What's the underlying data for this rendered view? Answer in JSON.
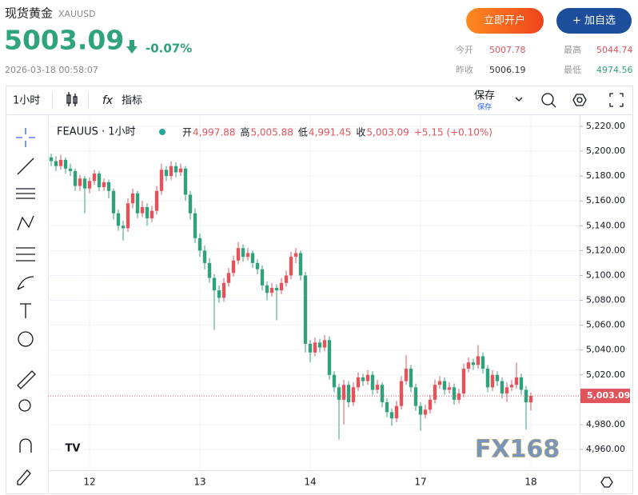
{
  "header": {
    "name": "现货黄金",
    "code": "XAUUSD",
    "price": "5003.09",
    "change": "-0.07%",
    "time": "2026-03-18 00:58:07",
    "buttons": [
      "立即开户",
      "+ 加自选"
    ],
    "stats": [
      {
        "label": "今开",
        "value": "5007.78"
      },
      {
        "label": "最高",
        "value": "5044.74"
      },
      {
        "label": "昨收",
        "value": "5006.19"
      },
      {
        "label": "最低",
        "value": "4974.56"
      }
    ]
  },
  "toolbar": {
    "interval": "1小时",
    "indicators": "指标",
    "save": "保存",
    "save_sub": "保存"
  },
  "chart_data": {
    "type": "candlestick",
    "symbol": "FEAUUS · 1小时",
    "legend": [
      {
        "label": "开",
        "value": "4,997.88"
      },
      {
        "label": "高",
        "value": "5,005.88"
      },
      {
        "label": "低",
        "value": "4,991.45"
      },
      {
        "label": "收",
        "value": "5,003.09"
      }
    ],
    "legend_change": "+5.15 (+0.10%)",
    "watermark": "FX168",
    "up_color": "#e2545c",
    "down_color": "#33a07c",
    "grid": true,
    "ylim": [
      4943.3,
      5226.4
    ],
    "xlim": [
      -0.67,
      110.17
    ],
    "yticks": [
      {
        "value": 5220,
        "label": "5,220.00"
      },
      {
        "value": 5200,
        "label": "5,200.00"
      },
      {
        "value": 5180,
        "label": "5,180.00"
      },
      {
        "value": 5160,
        "label": "5,160.00"
      },
      {
        "value": 5140,
        "label": "5,140.00"
      },
      {
        "value": 5120,
        "label": "5,120.00"
      },
      {
        "value": 5100,
        "label": "5,100.00"
      },
      {
        "value": 5080,
        "label": "5,080.00"
      },
      {
        "value": 5060,
        "label": "5,060.00"
      },
      {
        "value": 5040,
        "label": "5,040.00"
      },
      {
        "value": 5020,
        "label": "5,020.00"
      },
      {
        "value": 5000,
        "label": "5,000.00"
      },
      {
        "value": 4980,
        "label": "4,980.00"
      },
      {
        "value": 4960,
        "label": "4,960.00"
      }
    ],
    "xticks": [
      {
        "value": 8,
        "label": "12"
      },
      {
        "value": 31,
        "label": "13"
      },
      {
        "value": 54,
        "label": "14"
      },
      {
        "value": 77,
        "label": "17"
      },
      {
        "value": 100,
        "label": "18"
      }
    ],
    "last_price": 5003.09,
    "last_price_label": "5,003.09",
    "candles": [
      [
        5195,
        5198,
        5188,
        5192
      ],
      [
        5192,
        5196,
        5184,
        5188
      ],
      [
        5188,
        5197,
        5185,
        5193
      ],
      [
        5193,
        5195,
        5182,
        5186
      ],
      [
        5186,
        5190,
        5180,
        5184
      ],
      [
        5184,
        5186,
        5168,
        5172
      ],
      [
        5172,
        5181,
        5168,
        5178
      ],
      [
        5178,
        5180,
        5150,
        5170
      ],
      [
        5170,
        5179,
        5166,
        5176
      ],
      [
        5176,
        5185,
        5173,
        5182
      ],
      [
        5182,
        5184,
        5168,
        5171
      ],
      [
        5171,
        5178,
        5168,
        5175
      ],
      [
        5175,
        5177,
        5162,
        5168
      ],
      [
        5168,
        5170,
        5145,
        5150
      ],
      [
        5150,
        5153,
        5136,
        5140
      ],
      [
        5140,
        5144,
        5128,
        5138
      ],
      [
        5138,
        5162,
        5135,
        5158
      ],
      [
        5158,
        5170,
        5154,
        5166
      ],
      [
        5166,
        5168,
        5146,
        5150
      ],
      [
        5150,
        5160,
        5147,
        5155
      ],
      [
        5155,
        5158,
        5140,
        5146
      ],
      [
        5146,
        5156,
        5143,
        5152
      ],
      [
        5152,
        5172,
        5149,
        5168
      ],
      [
        5168,
        5190,
        5165,
        5185
      ],
      [
        5185,
        5188,
        5176,
        5180
      ],
      [
        5180,
        5192,
        5177,
        5188
      ],
      [
        5188,
        5191,
        5179,
        5183
      ],
      [
        5183,
        5190,
        5180,
        5186
      ],
      [
        5186,
        5188,
        5160,
        5165
      ],
      [
        5165,
        5168,
        5145,
        5150
      ],
      [
        5150,
        5154,
        5126,
        5130
      ],
      [
        5130,
        5134,
        5115,
        5120
      ],
      [
        5120,
        5124,
        5105,
        5110
      ],
      [
        5110,
        5114,
        5094,
        5098
      ],
      [
        5098,
        5101,
        5056,
        5088
      ],
      [
        5088,
        5092,
        5078,
        5082
      ],
      [
        5082,
        5098,
        5079,
        5094
      ],
      [
        5094,
        5106,
        5091,
        5102
      ],
      [
        5102,
        5116,
        5099,
        5112
      ],
      [
        5112,
        5127,
        5109,
        5122
      ],
      [
        5122,
        5125,
        5111,
        5115
      ],
      [
        5115,
        5122,
        5112,
        5118
      ],
      [
        5118,
        5120,
        5106,
        5110
      ],
      [
        5110,
        5113,
        5101,
        5105
      ],
      [
        5105,
        5108,
        5088,
        5092
      ],
      [
        5092,
        5095,
        5080,
        5086
      ],
      [
        5086,
        5094,
        5083,
        5090
      ],
      [
        5090,
        5093,
        5064,
        5088
      ],
      [
        5088,
        5098,
        5085,
        5094
      ],
      [
        5094,
        5104,
        5091,
        5100
      ],
      [
        5100,
        5119,
        5097,
        5115
      ],
      [
        5115,
        5122,
        5110,
        5118
      ],
      [
        5118,
        5120,
        5096,
        5100
      ],
      [
        5100,
        5103,
        5038,
        5045
      ],
      [
        5045,
        5048,
        5030,
        5038
      ],
      [
        5038,
        5050,
        5035,
        5046
      ],
      [
        5046,
        5049,
        5038,
        5042
      ],
      [
        5042,
        5052,
        5039,
        5048
      ],
      [
        5048,
        5051,
        5016,
        5020
      ],
      [
        5020,
        5023,
        5006,
        5010
      ],
      [
        5010,
        5013,
        4968,
        5000
      ],
      [
        5000,
        5016,
        4980,
        5012
      ],
      [
        5012,
        5015,
        4994,
        4998
      ],
      [
        4998,
        5014,
        4995,
        5010
      ],
      [
        5010,
        5022,
        5007,
        5018
      ],
      [
        5018,
        5021,
        5011,
        5015
      ],
      [
        5015,
        5024,
        5012,
        5020
      ],
      [
        5020,
        5023,
        5004,
        5008
      ],
      [
        5008,
        5016,
        5005,
        5012
      ],
      [
        5012,
        5014,
        4994,
        4998
      ],
      [
        4998,
        5001,
        4986,
        4990
      ],
      [
        4990,
        4993,
        4979,
        4985
      ],
      [
        4985,
        4999,
        4982,
        4995
      ],
      [
        4995,
        5019,
        4992,
        5015
      ],
      [
        5015,
        5036,
        5012,
        5025
      ],
      [
        5025,
        5028,
        5006,
        5010
      ],
      [
        5010,
        5013,
        4991,
        4995
      ],
      [
        4995,
        4998,
        4975,
        4988
      ],
      [
        4988,
        4996,
        4985,
        4992
      ],
      [
        4992,
        5004,
        4989,
        5000
      ],
      [
        5000,
        5016,
        4997,
        5012
      ],
      [
        5012,
        5019,
        5009,
        5015
      ],
      [
        5015,
        5018,
        5004,
        5008
      ],
      [
        5008,
        5014,
        5005,
        5010
      ],
      [
        5010,
        5013,
        4996,
        5000
      ],
      [
        5000,
        5009,
        4997,
        5005
      ],
      [
        5005,
        5029,
        5002,
        5025
      ],
      [
        5025,
        5034,
        5022,
        5030
      ],
      [
        5030,
        5033,
        5024,
        5028
      ],
      [
        5028,
        5044,
        5025,
        5035
      ],
      [
        5035,
        5038,
        5021,
        5025
      ],
      [
        5025,
        5028,
        5006,
        5010
      ],
      [
        5010,
        5024,
        5007,
        5020
      ],
      [
        5020,
        5023,
        5011,
        5015
      ],
      [
        5015,
        5018,
        5001,
        5005
      ],
      [
        5005,
        5014,
        4998,
        5010
      ],
      [
        5010,
        5016,
        5007,
        5012
      ],
      [
        5012,
        5030,
        5009,
        5018
      ],
      [
        5018,
        5021,
        5004,
        5008
      ],
      [
        5008,
        5011,
        4976,
        4997.94
      ],
      [
        4997.88,
        5005.88,
        4991.45,
        5003.09
      ]
    ]
  }
}
